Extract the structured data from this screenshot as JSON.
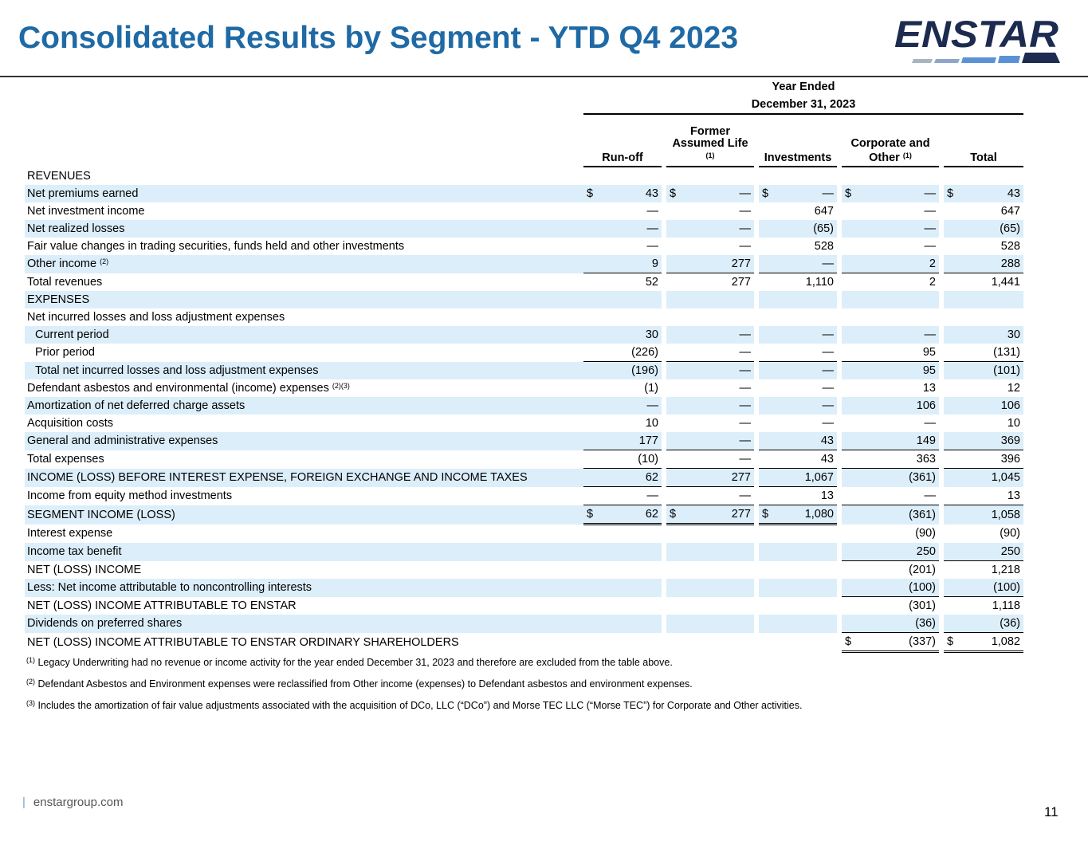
{
  "title": "Consolidated Results by Segment - YTD Q4 2023",
  "logo_text": "ENSTAR",
  "period_line1": "Year Ended",
  "period_line2": "December 31, 2023",
  "columns": {
    "runoff": "Run-off",
    "fal_line1": "Former",
    "fal_line2": "Assumed Life",
    "fal_note": "(1)",
    "investments": "Investments",
    "corp_line1": "Corporate and",
    "corp_line2": "Other",
    "corp_note": "(1)",
    "total": "Total"
  },
  "rows": [
    {
      "label": "REVENUES",
      "values": [
        "",
        "",
        "",
        "",
        ""
      ]
    },
    {
      "label": "Net premiums earned",
      "values": [
        "43",
        "—",
        "—",
        "—",
        "43"
      ]
    },
    {
      "label": "Net investment income",
      "values": [
        "—",
        "—",
        "647",
        "—",
        "647"
      ]
    },
    {
      "label": "Net realized losses",
      "values": [
        "—",
        "—",
        "(65)",
        "—",
        "(65)"
      ]
    },
    {
      "label": "Fair value changes in trading securities, funds held and other investments",
      "values": [
        "—",
        "—",
        "528",
        "—",
        "528"
      ]
    },
    {
      "label": "Other income",
      "note": "(2)",
      "values": [
        "9",
        "277",
        "—",
        "2",
        "288"
      ]
    },
    {
      "label": "Total revenues",
      "values": [
        "52",
        "277",
        "1,110",
        "2",
        "1,441"
      ]
    },
    {
      "label": "EXPENSES",
      "values": [
        "",
        "",
        "",
        "",
        ""
      ]
    },
    {
      "label": "Net incurred losses and loss adjustment expenses",
      "values": [
        "",
        "",
        "",
        "",
        ""
      ]
    },
    {
      "label": "Current period",
      "values": [
        "30",
        "—",
        "—",
        "—",
        "30"
      ]
    },
    {
      "label": "Prior period",
      "values": [
        "(226)",
        "—",
        "—",
        "95",
        "(131)"
      ]
    },
    {
      "label": "Total net incurred losses and loss adjustment expenses",
      "values": [
        "(196)",
        "—",
        "—",
        "95",
        "(101)"
      ]
    },
    {
      "label": "Defendant asbestos and environmental (income) expenses",
      "note": "(2)(3)",
      "values": [
        "(1)",
        "—",
        "—",
        "13",
        "12"
      ]
    },
    {
      "label": "Amortization of net deferred charge assets",
      "values": [
        "—",
        "—",
        "—",
        "106",
        "106"
      ]
    },
    {
      "label": "Acquisition costs",
      "values": [
        "10",
        "—",
        "—",
        "—",
        "10"
      ]
    },
    {
      "label": "General and administrative expenses",
      "values": [
        "177",
        "—",
        "43",
        "149",
        "369"
      ]
    },
    {
      "label": "Total expenses",
      "values": [
        "(10)",
        "—",
        "43",
        "363",
        "396"
      ]
    },
    {
      "label": "INCOME (LOSS) BEFORE INTEREST EXPENSE, FOREIGN EXCHANGE AND INCOME TAXES",
      "values": [
        "62",
        "277",
        "1,067",
        "(361)",
        "1,045"
      ]
    },
    {
      "label": "Income from equity method investments",
      "values": [
        "—",
        "—",
        "13",
        "—",
        "13"
      ]
    },
    {
      "label": "SEGMENT INCOME (LOSS)",
      "values": [
        "62",
        "277",
        "1,080",
        "(361)",
        "1,058"
      ]
    },
    {
      "label": "Interest expense",
      "values": [
        "",
        "",
        "",
        "(90)",
        "(90)"
      ]
    },
    {
      "label": "Income tax benefit",
      "values": [
        "",
        "",
        "",
        "250",
        "250"
      ]
    },
    {
      "label": "NET (LOSS) INCOME",
      "values": [
        "",
        "",
        "",
        "(201)",
        "1,218"
      ]
    },
    {
      "label": "Less: Net income attributable to noncontrolling interests",
      "values": [
        "",
        "",
        "",
        "(100)",
        "(100)"
      ]
    },
    {
      "label": "NET (LOSS) INCOME ATTRIBUTABLE TO ENSTAR",
      "values": [
        "",
        "",
        "",
        "(301)",
        "1,118"
      ]
    },
    {
      "label": "Dividends on preferred shares",
      "values": [
        "",
        "",
        "",
        "(36)",
        "(36)"
      ]
    },
    {
      "label": "NET (LOSS) INCOME ATTRIBUTABLE TO ENSTAR ORDINARY SHAREHOLDERS",
      "values": [
        "",
        "",
        "",
        "(337)",
        "1,082"
      ]
    }
  ],
  "currency_symbol": "$",
  "footnotes": [
    {
      "mark": "(1)",
      "text": "Legacy Underwriting had no revenue or income activity for the year ended December 31, 2023 and therefore are excluded from the table above."
    },
    {
      "mark": "(2)",
      "text": "Defendant Asbestos and Environment expenses were reclassified from Other income (expenses) to Defendant asbestos and environment expenses."
    },
    {
      "mark": "(3)",
      "text": "Includes the amortization of fair value adjustments associated with the acquisition of DCo, LLC (“DCo”) and Morse TEC LLC (“Morse TEC”) for Corporate and Other activities."
    }
  ],
  "footer": "enstargroup.com",
  "page_number": "11",
  "colors": {
    "title": "#1f6aa5",
    "row_shade": "#dceefa",
    "logo_dark": "#1c2b4f",
    "logo_light": "#5b92d6"
  }
}
